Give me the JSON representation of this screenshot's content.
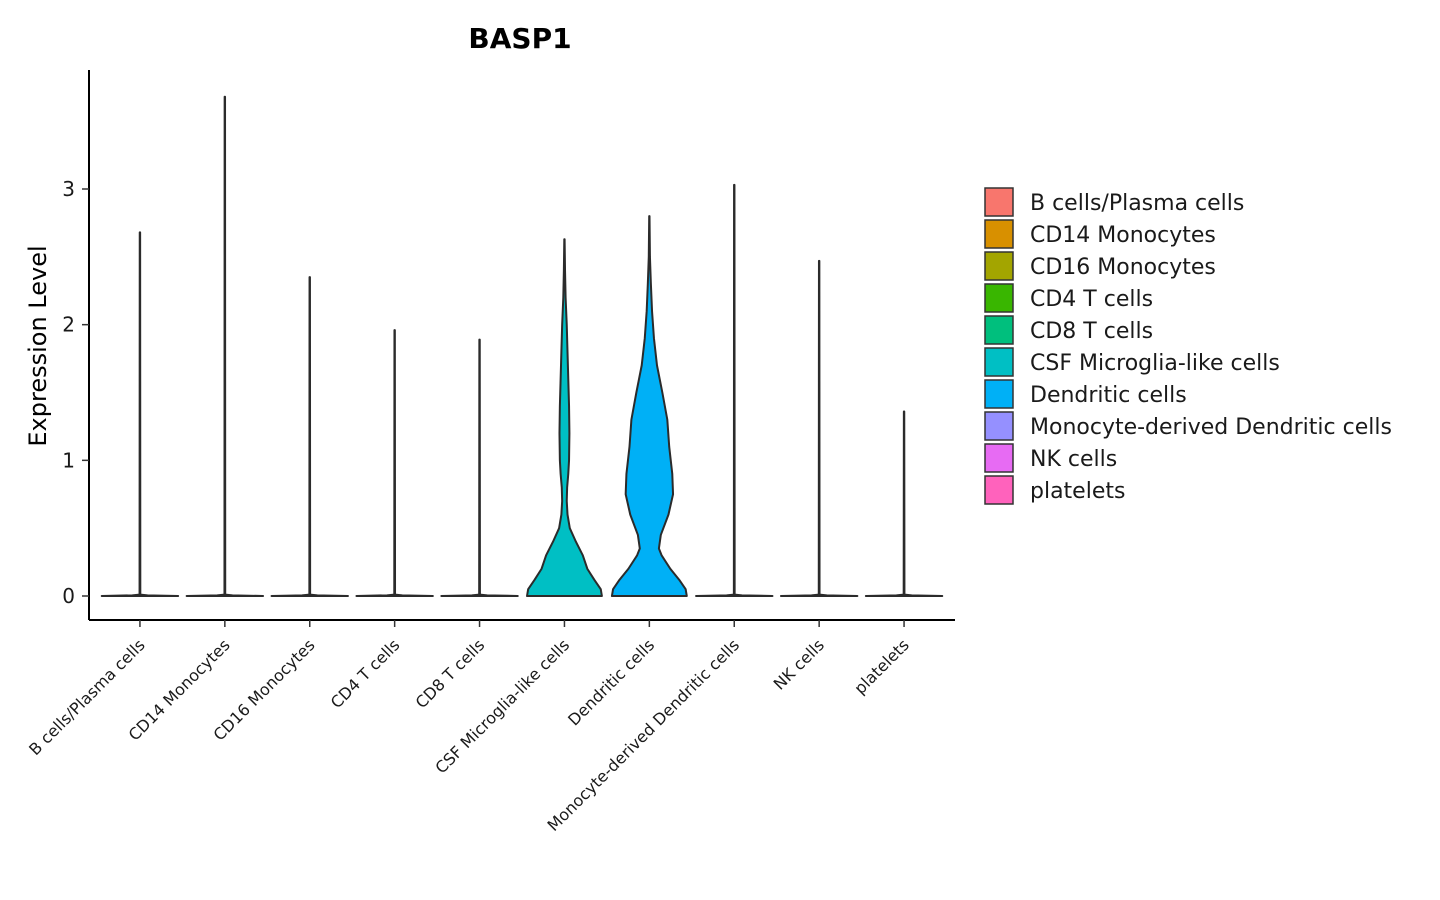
{
  "chart_data": {
    "type": "violin",
    "title": "BASP1",
    "xlabel": "",
    "ylabel": "Expression Level",
    "ylim": [
      -0.18,
      3.9
    ],
    "yticks": [
      0,
      1,
      2,
      3
    ],
    "categories": [
      "B cells/Plasma cells",
      "CD14 Monocytes",
      "CD16 Monocytes",
      "CD4 T cells",
      "CD8 T cells",
      "CSF Microglia-like cells",
      "Dendritic cells",
      "Monocyte-derived Dendritic cells",
      "NK cells",
      "platelets"
    ],
    "colors": [
      "#F8766D",
      "#D89000",
      "#A3A500",
      "#39B600",
      "#00BF7D",
      "#00BFC4",
      "#00B0F6",
      "#9590FF",
      "#E76BF3",
      "#FF62BC"
    ],
    "max_values": [
      2.68,
      3.68,
      2.35,
      1.96,
      1.89,
      2.63,
      2.8,
      3.03,
      2.47,
      1.36
    ],
    "density_profiles": [
      [
        [
          0,
          1.0
        ],
        [
          0.005,
          0.2
        ],
        [
          0.01,
          0.01
        ],
        [
          2.68,
          0.005
        ]
      ],
      [
        [
          0,
          1.0
        ],
        [
          0.005,
          0.2
        ],
        [
          0.01,
          0.01
        ],
        [
          3.68,
          0.005
        ]
      ],
      [
        [
          0,
          1.0
        ],
        [
          0.005,
          0.2
        ],
        [
          0.01,
          0.01
        ],
        [
          2.35,
          0.005
        ]
      ],
      [
        [
          0,
          1.0
        ],
        [
          0.005,
          0.2
        ],
        [
          0.01,
          0.01
        ],
        [
          1.96,
          0.005
        ]
      ],
      [
        [
          0,
          1.0
        ],
        [
          0.005,
          0.2
        ],
        [
          0.01,
          0.01
        ],
        [
          1.89,
          0.005
        ]
      ],
      [
        [
          0,
          0.98
        ],
        [
          0.05,
          0.95
        ],
        [
          0.12,
          0.78
        ],
        [
          0.2,
          0.6
        ],
        [
          0.3,
          0.48
        ],
        [
          0.4,
          0.3
        ],
        [
          0.5,
          0.14
        ],
        [
          0.6,
          0.08
        ],
        [
          0.7,
          0.06
        ],
        [
          0.8,
          0.07
        ],
        [
          0.9,
          0.1
        ],
        [
          1.0,
          0.12
        ],
        [
          1.2,
          0.13
        ],
        [
          1.4,
          0.12
        ],
        [
          1.6,
          0.1
        ],
        [
          1.8,
          0.08
        ],
        [
          2.0,
          0.06
        ],
        [
          2.2,
          0.03
        ],
        [
          2.4,
          0.015
        ],
        [
          2.63,
          0.004
        ]
      ],
      [
        [
          0,
          0.98
        ],
        [
          0.05,
          0.95
        ],
        [
          0.12,
          0.78
        ],
        [
          0.2,
          0.55
        ],
        [
          0.3,
          0.32
        ],
        [
          0.35,
          0.25
        ],
        [
          0.45,
          0.3
        ],
        [
          0.6,
          0.5
        ],
        [
          0.75,
          0.62
        ],
        [
          0.9,
          0.6
        ],
        [
          1.1,
          0.52
        ],
        [
          1.3,
          0.47
        ],
        [
          1.5,
          0.34
        ],
        [
          1.7,
          0.2
        ],
        [
          1.9,
          0.12
        ],
        [
          2.1,
          0.07
        ],
        [
          2.3,
          0.04
        ],
        [
          2.5,
          0.015
        ],
        [
          2.8,
          0.004
        ]
      ],
      [
        [
          0,
          1.0
        ],
        [
          0.005,
          0.2
        ],
        [
          0.01,
          0.01
        ],
        [
          3.03,
          0.005
        ]
      ],
      [
        [
          0,
          1.0
        ],
        [
          0.005,
          0.2
        ],
        [
          0.01,
          0.01
        ],
        [
          2.47,
          0.005
        ]
      ],
      [
        [
          0,
          1.0
        ],
        [
          0.005,
          0.2
        ],
        [
          0.01,
          0.01
        ],
        [
          1.36,
          0.005
        ]
      ]
    ],
    "legend": {
      "placement": "right",
      "entries": [
        "B cells/Plasma cells",
        "CD14 Monocytes",
        "CD16 Monocytes",
        "CD4 T cells",
        "CD8 T cells",
        "CSF Microglia-like cells",
        "Dendritic cells",
        "Monocyte-derived Dendritic cells",
        "NK cells",
        "platelets"
      ]
    },
    "grid": false
  }
}
